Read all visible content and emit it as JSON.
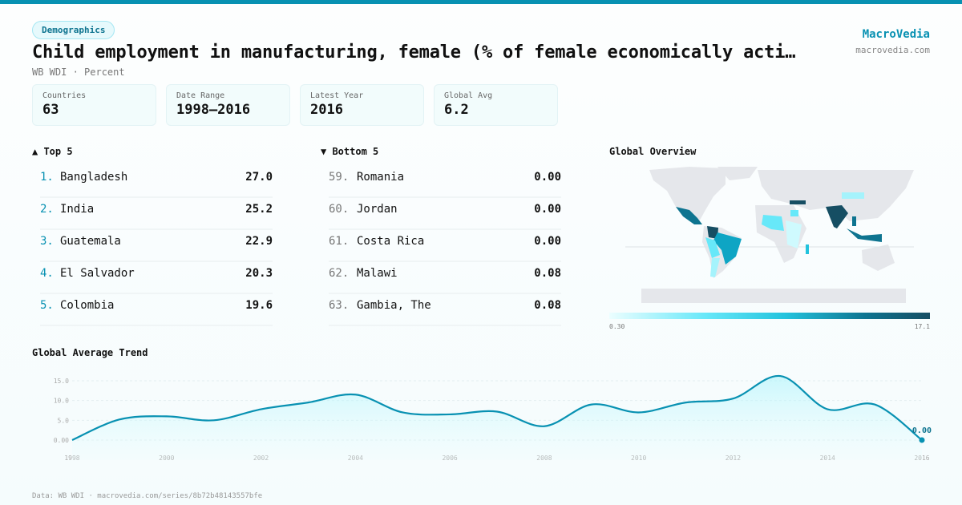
{
  "badge": "Demographics",
  "title": "Child employment in manufacturing, female (% of female economically acti…",
  "subtitle": "WB WDI · Percent",
  "brand": {
    "name": "MacroVedia",
    "url": "macrovedia.com"
  },
  "stats": [
    {
      "label": "Countries",
      "value": "63"
    },
    {
      "label": "Date Range",
      "value": "1998–2016"
    },
    {
      "label": "Latest Year",
      "value": "2016"
    },
    {
      "label": "Global Avg",
      "value": "6.2"
    }
  ],
  "top": {
    "title": "▲ Top 5",
    "items": [
      {
        "rank": "1.",
        "name": "Bangladesh",
        "value": "27.0"
      },
      {
        "rank": "2.",
        "name": "India",
        "value": "25.2"
      },
      {
        "rank": "3.",
        "name": "Guatemala",
        "value": "22.9"
      },
      {
        "rank": "4.",
        "name": "El Salvador",
        "value": "20.3"
      },
      {
        "rank": "5.",
        "name": "Colombia",
        "value": "19.6"
      }
    ]
  },
  "bottom": {
    "title": "▼ Bottom 5",
    "items": [
      {
        "rank": "59.",
        "name": "Romania",
        "value": "0.00"
      },
      {
        "rank": "60.",
        "name": "Jordan",
        "value": "0.00"
      },
      {
        "rank": "61.",
        "name": "Costa Rica",
        "value": "0.00"
      },
      {
        "rank": "62.",
        "name": "Malawi",
        "value": "0.08"
      },
      {
        "rank": "63.",
        "name": "Gambia, The",
        "value": "0.08"
      }
    ]
  },
  "map": {
    "title": "Global Overview",
    "legend_min": "0.30",
    "legend_max": "17.1",
    "colors": [
      "#ecfeff",
      "#67e8f9",
      "#22c3dd",
      "#0e7490",
      "#164e63"
    ],
    "land_color": "#e5e7eb"
  },
  "chart_data": {
    "type": "area",
    "title": "Global Average Trend",
    "x": [
      1998,
      1999,
      2000,
      2001,
      2002,
      2003,
      2004,
      2005,
      2006,
      2007,
      2008,
      2009,
      2010,
      2011,
      2012,
      2013,
      2014,
      2015,
      2016
    ],
    "values": [
      0,
      5.2,
      6.0,
      5.0,
      7.8,
      9.5,
      11.5,
      7.0,
      6.5,
      7.2,
      3.5,
      9.0,
      7.0,
      9.5,
      10.5,
      16.2,
      7.8,
      9.0,
      0
    ],
    "xticks": [
      "1998",
      "2000",
      "2002",
      "2004",
      "2006",
      "2008",
      "2010",
      "2012",
      "2014",
      "2016"
    ],
    "yticks": [
      "0.00",
      "5.0",
      "10.0",
      "15.0"
    ],
    "ylim": [
      0,
      16.5
    ],
    "last_label": "0.00",
    "color": "#0891b2",
    "grid": true
  },
  "footer": "Data: WB WDI · macrovedia.com/series/8b72b48143557bfe"
}
